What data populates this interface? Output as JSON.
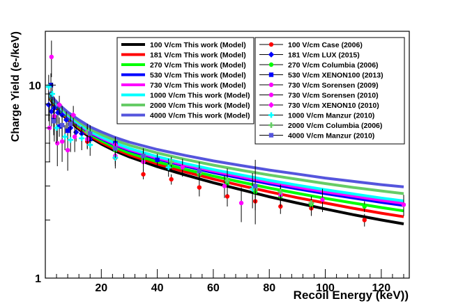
{
  "chart_data": {
    "type": "scatter",
    "xlabel": "Recoil Energy (keV))",
    "ylabel": "Charge Yield (e-/keV)",
    "xlim": [
      0,
      130
    ],
    "ylim": [
      1,
      19
    ],
    "yscale": "log",
    "x_ticks": [
      "20",
      "40",
      "60",
      "80",
      "100",
      "120"
    ],
    "y_ticks": [
      "1",
      "10"
    ],
    "grid": false,
    "legend_placement": "top-right, two boxes",
    "model_series": [
      {
        "name": "100 V/cm This work  (Model)",
        "color": "#000000",
        "x": [
          1.5,
          3,
          5,
          8,
          12,
          16,
          20,
          25,
          30,
          40,
          50,
          60,
          70,
          80,
          90,
          100,
          110,
          120,
          128
        ],
        "y": [
          8.6,
          7.9,
          7.3,
          6.6,
          5.9,
          5.35,
          4.95,
          4.55,
          4.25,
          3.78,
          3.42,
          3.12,
          2.87,
          2.64,
          2.45,
          2.28,
          2.13,
          2.0,
          1.91
        ]
      },
      {
        "name": "181 V/cm This work  (Model)",
        "color": "#ff0000",
        "x": [
          1.5,
          3,
          5,
          8,
          12,
          16,
          20,
          25,
          30,
          40,
          50,
          60,
          70,
          80,
          90,
          100,
          110,
          120,
          128
        ],
        "y": [
          8.7,
          8.0,
          7.4,
          6.7,
          6.0,
          5.45,
          5.05,
          4.65,
          4.35,
          3.9,
          3.55,
          3.26,
          3.01,
          2.8,
          2.61,
          2.45,
          2.3,
          2.17,
          2.08
        ]
      },
      {
        "name": "270 V/cm This work  (Model)",
        "color": "#00ff00",
        "x": [
          1.5,
          3,
          5,
          8,
          12,
          16,
          20,
          25,
          30,
          40,
          50,
          60,
          70,
          80,
          90,
          100,
          110,
          120,
          128
        ],
        "y": [
          8.8,
          8.1,
          7.5,
          6.8,
          6.1,
          5.55,
          5.15,
          4.75,
          4.45,
          4.0,
          3.66,
          3.38,
          3.14,
          2.93,
          2.75,
          2.59,
          2.45,
          2.32,
          2.23
        ]
      },
      {
        "name": "530 V/cm This work  (Model)",
        "color": "#0000ff",
        "x": [
          1.5,
          3,
          5,
          8,
          12,
          16,
          20,
          25,
          30,
          40,
          50,
          60,
          70,
          80,
          90,
          100,
          110,
          120,
          128
        ],
        "y": [
          8.9,
          8.2,
          7.6,
          6.9,
          6.2,
          5.65,
          5.27,
          4.88,
          4.58,
          4.14,
          3.8,
          3.52,
          3.29,
          3.08,
          2.9,
          2.74,
          2.6,
          2.47,
          2.38
        ]
      },
      {
        "name": "730 V/cm This work  (Model)",
        "color": "#ff00ff",
        "x": [
          1.5,
          3,
          5,
          8,
          12,
          16,
          20,
          25,
          30,
          40,
          50,
          60,
          70,
          80,
          90,
          100,
          110,
          120,
          128
        ],
        "y": [
          8.95,
          8.25,
          7.65,
          6.95,
          6.25,
          5.7,
          5.32,
          4.93,
          4.63,
          4.19,
          3.85,
          3.58,
          3.35,
          3.14,
          2.96,
          2.8,
          2.66,
          2.53,
          2.44
        ]
      },
      {
        "name": "1000 V/cm This work  (Model)",
        "color": "#00ffff",
        "x": [
          1.5,
          3,
          5,
          8,
          12,
          16,
          20,
          25,
          30,
          40,
          50,
          60,
          70,
          80,
          90,
          100,
          110,
          120,
          128
        ],
        "y": [
          9.0,
          8.3,
          7.7,
          7.0,
          6.3,
          5.76,
          5.38,
          5.0,
          4.7,
          4.26,
          3.92,
          3.65,
          3.42,
          3.21,
          3.03,
          2.87,
          2.73,
          2.6,
          2.51
        ]
      },
      {
        "name": "2000 V/cm This work  (Model)",
        "color": "#66cc66",
        "x": [
          1.5,
          3,
          5,
          8,
          12,
          16,
          20,
          25,
          30,
          40,
          50,
          60,
          70,
          80,
          90,
          100,
          110,
          120,
          128
        ],
        "y": [
          9.1,
          8.4,
          7.8,
          7.1,
          6.45,
          5.92,
          5.55,
          5.17,
          4.88,
          4.45,
          4.12,
          3.85,
          3.62,
          3.42,
          3.25,
          3.09,
          2.95,
          2.83,
          2.74
        ]
      },
      {
        "name": "4000 V/cm This work  (Model)",
        "color": "#5555dd",
        "x": [
          1.5,
          3,
          5,
          8,
          12,
          16,
          20,
          25,
          30,
          40,
          50,
          60,
          70,
          80,
          90,
          100,
          110,
          120,
          128
        ],
        "y": [
          9.2,
          8.5,
          7.9,
          7.25,
          6.6,
          6.08,
          5.72,
          5.35,
          5.06,
          4.64,
          4.32,
          4.05,
          3.83,
          3.63,
          3.46,
          3.3,
          3.17,
          3.05,
          2.97
        ]
      }
    ],
    "data_series": [
      {
        "name": "100 V/cm Case (2006)",
        "color": "#ff0000",
        "marker": "circle",
        "x": [
          15,
          25,
          35,
          45,
          55,
          65,
          75,
          84,
          95,
          114
        ],
        "y": [
          5.1,
          4.2,
          3.45,
          3.25,
          2.95,
          2.65,
          2.5,
          2.35,
          2.3,
          2.0
        ],
        "err": [
          0.4,
          0.3,
          0.2,
          0.2,
          0.3,
          0.3,
          0.25,
          0.2,
          0.2,
          0.15
        ]
      },
      {
        "name": "181 V/cm LUX (2015)",
        "color": "#0000ff",
        "marker": "diamond",
        "x": [
          1.2,
          2.2,
          3.2,
          4.5,
          6,
          7.5,
          9,
          11,
          13
        ],
        "y": [
          7.9,
          7.3,
          7.6,
          7.2,
          7.0,
          6.6,
          6.0,
          5.7,
          5.6
        ],
        "err": [
          1.4,
          1.2,
          1.0,
          0.9,
          0.8,
          0.7,
          0.6,
          0.6,
          0.5
        ]
      },
      {
        "name": "270 V/cm Columbia (2006)",
        "color": "#00ff00",
        "marker": "circle",
        "x": [
          25,
          35,
          45,
          55,
          65,
          75,
          84,
          95,
          114
        ],
        "y": [
          4.6,
          4.1,
          3.8,
          3.45,
          3.1,
          2.8,
          2.65,
          2.4,
          2.35
        ],
        "err": [
          0.3,
          0.25,
          0.2,
          0.2,
          0.2,
          0.2,
          0.15,
          0.15,
          0.15
        ]
      },
      {
        "name": "530 V/cm XENON100 (2013)",
        "color": "#0000ff",
        "marker": "square",
        "x": [
          2,
          3,
          5,
          8,
          16,
          25,
          40
        ],
        "y": [
          10.0,
          6.6,
          6.1,
          5.8,
          5.25,
          5.0,
          4.1
        ],
        "err": [
          1.5,
          0.9,
          0.7,
          0.6,
          0.5,
          0.4,
          0.3
        ]
      },
      {
        "name": "730 V/cm Sorensen (2009)",
        "color": "#ff00ff",
        "marker": "circle",
        "x": [
          1.5,
          2.2,
          3.2,
          4.3,
          6,
          8,
          10.5
        ],
        "y": [
          6.0,
          14.0,
          6.9,
          5.0,
          5.1,
          4.6,
          5.4
        ],
        "err": [
          2.0,
          3.0,
          1.8,
          1.2,
          1.1,
          1.0,
          0.9
        ]
      },
      {
        "name": "730 V/cm Sorensen (2010)",
        "color": "#ff00ff",
        "marker": "circle",
        "x": [
          15,
          25,
          35,
          49,
          64,
          70,
          84,
          99,
          128
        ],
        "y": [
          5.25,
          4.3,
          4.0,
          3.75,
          3.0,
          2.45,
          2.7,
          2.55,
          2.4
        ],
        "err": [
          0.6,
          0.5,
          0.4,
          0.4,
          0.4,
          0.5,
          0.35,
          0.35,
          0.3
        ]
      },
      {
        "name": "730 V/cm XENON10 (2010)",
        "color": "#ff00ff",
        "marker": "diamond",
        "x": [
          5,
          10,
          15,
          25,
          35
        ],
        "y": [
          7.9,
          7.0,
          5.7,
          4.9,
          4.3
        ],
        "err": [
          0.9,
          0.8,
          0.6,
          0.5,
          0.4
        ]
      },
      {
        "name": "1000 V/cm Manzur (2010)",
        "color": "#00ffff",
        "marker": "cross",
        "x": [
          1.2,
          2.5,
          4,
          7,
          9,
          13,
          16,
          25,
          44,
          65,
          74
        ],
        "y": [
          9.8,
          9.0,
          6.0,
          5.4,
          5.2,
          5.3,
          4.9,
          4.2,
          3.75,
          3.2,
          2.9
        ],
        "err": [
          1.5,
          1.3,
          1.0,
          0.8,
          0.7,
          0.7,
          0.6,
          0.5,
          0.4,
          0.5,
          0.6
        ]
      },
      {
        "name": "2000 V/cm Columbia (2006)",
        "color": "#66cc66",
        "marker": "cross",
        "x": [
          15,
          25,
          35,
          45,
          55,
          65,
          75,
          84,
          95
        ],
        "y": [
          5.7,
          4.7,
          4.3,
          4.0,
          3.5,
          3.2,
          2.9,
          2.8,
          2.45
        ],
        "err": [
          0.4,
          0.3,
          0.3,
          0.25,
          0.25,
          0.25,
          0.2,
          0.2,
          0.2
        ]
      },
      {
        "name": "4000 V/cm  Manzur (2010)",
        "color": "#5555dd",
        "marker": "square",
        "x": [
          3,
          6,
          9,
          16,
          25,
          35,
          55,
          75
        ],
        "y": [
          6.5,
          6.2,
          6.3,
          5.6,
          4.7,
          4.3,
          3.6,
          3.0
        ],
        "err": [
          1.0,
          0.8,
          0.7,
          0.6,
          0.5,
          0.4,
          0.4,
          1.1
        ]
      }
    ]
  }
}
